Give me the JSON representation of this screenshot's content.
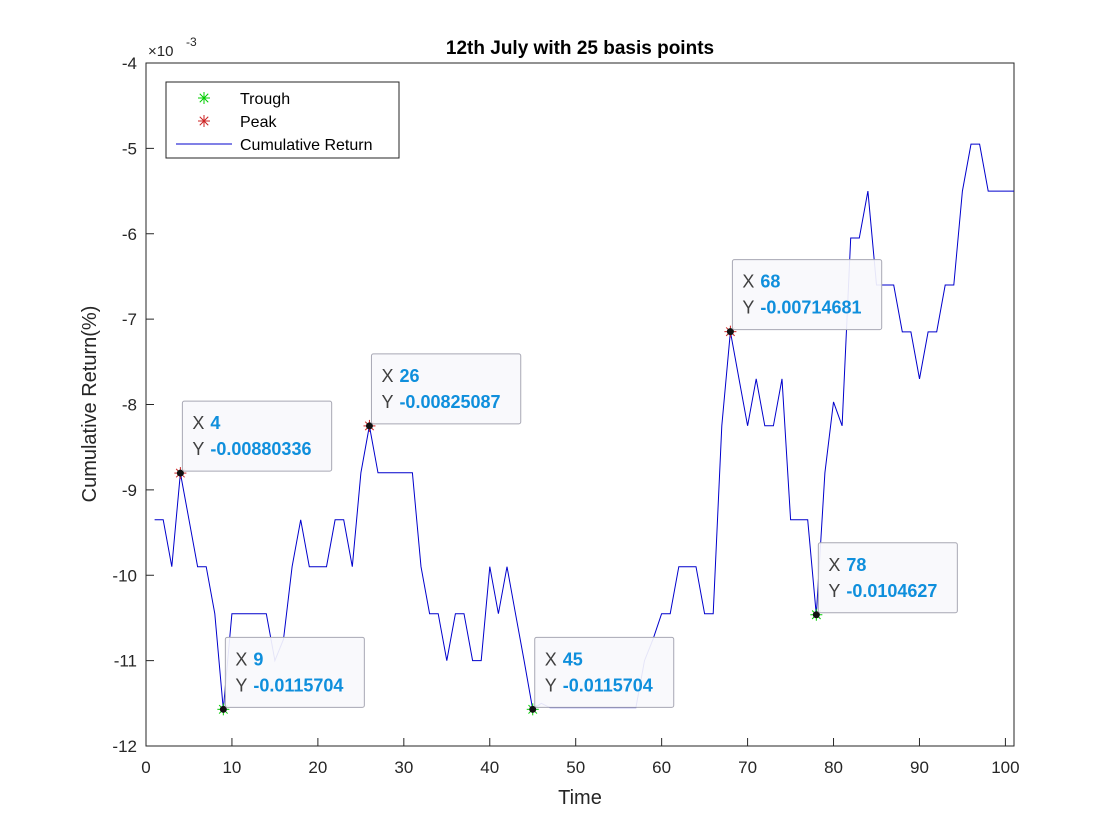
{
  "chart_data": {
    "type": "line",
    "title": "12th July with 25 basis points",
    "xlabel": "Time",
    "ylabel": "Cumulative Return(%)",
    "xlim": [
      0,
      101
    ],
    "ylim": [
      -12,
      -4
    ],
    "exponent_label": "×10",
    "exponent_power": "-3",
    "x_ticks": [
      0,
      10,
      20,
      30,
      40,
      50,
      60,
      70,
      80,
      90,
      100
    ],
    "x_tick_labels": [
      "0",
      "10",
      "20",
      "30",
      "40",
      "50",
      "60",
      "70",
      "80",
      "90",
      "100"
    ],
    "y_ticks": [
      -12,
      -11,
      -10,
      -9,
      -8,
      -7,
      -6,
      -5,
      -4
    ],
    "y_tick_labels": [
      "-12",
      "-11",
      "-10",
      "-9",
      "-8",
      "-7",
      "-6",
      "-5",
      "-4"
    ],
    "legend": {
      "position": "top-left",
      "entries": [
        {
          "label": "Trough",
          "marker": "asterisk",
          "color": "#00cc00"
        },
        {
          "label": "Peak",
          "marker": "asterisk",
          "color": "#cc2222"
        },
        {
          "label": "Cumulative Return",
          "marker": "line",
          "color": "#0000cc"
        }
      ]
    },
    "series": [
      {
        "name": "Cumulative Return",
        "color": "#0000cc",
        "x": [
          1,
          2,
          3,
          4,
          5,
          6,
          7,
          8,
          9,
          10,
          11,
          12,
          13,
          14,
          15,
          16,
          17,
          18,
          19,
          20,
          21,
          22,
          23,
          24,
          25,
          26,
          27,
          28,
          29,
          30,
          31,
          32,
          33,
          34,
          35,
          36,
          37,
          38,
          39,
          40,
          41,
          42,
          43,
          44,
          45,
          46,
          47,
          48,
          49,
          50,
          51,
          52,
          53,
          54,
          55,
          56,
          57,
          58,
          59,
          60,
          61,
          62,
          63,
          64,
          65,
          66,
          67,
          68,
          69,
          70,
          71,
          72,
          73,
          74,
          75,
          76,
          77,
          78,
          79,
          80,
          81,
          82,
          83,
          84,
          85,
          86,
          87,
          88,
          89,
          90,
          91,
          92,
          93,
          94,
          95,
          96,
          97,
          98,
          99,
          100,
          101
        ],
        "y": [
          -9.35,
          -9.35,
          -9.9,
          -8.8034,
          -9.35,
          -9.9,
          -9.9,
          -10.45,
          -11.5704,
          -10.45,
          -10.45,
          -10.45,
          -10.45,
          -10.45,
          -11.0,
          -10.75,
          -9.9,
          -9.35,
          -9.9,
          -9.9,
          -9.9,
          -9.35,
          -9.35,
          -9.9,
          -8.8,
          -8.2509,
          -8.8,
          -8.8,
          -8.8,
          -8.8,
          -8.8,
          -9.9,
          -10.45,
          -10.45,
          -11.0,
          -10.45,
          -10.45,
          -11.0,
          -11.0,
          -9.9,
          -10.45,
          -9.9,
          -10.45,
          -11.0,
          -11.5704,
          -11.5,
          -11.55,
          -11.55,
          -11.55,
          -11.55,
          -11.55,
          -11.55,
          -11.55,
          -11.55,
          -11.55,
          -11.55,
          -11.55,
          -11.0,
          -10.75,
          -10.45,
          -10.45,
          -9.9,
          -9.9,
          -9.9,
          -10.45,
          -10.45,
          -8.25,
          -7.1468,
          -7.7,
          -8.25,
          -7.7,
          -8.25,
          -8.25,
          -7.7,
          -9.35,
          -9.35,
          -9.35,
          -10.4627,
          -8.8,
          -7.97,
          -8.25,
          -6.05,
          -6.05,
          -5.5,
          -6.6,
          -6.6,
          -6.6,
          -7.15,
          -7.15,
          -7.7,
          -7.15,
          -7.15,
          -6.6,
          -6.6,
          -5.5,
          -4.95,
          -4.95,
          -5.5,
          -5.5,
          -5.5,
          -5.5
        ]
      }
    ],
    "troughs": [
      {
        "x": 9,
        "y": -11.5704
      },
      {
        "x": 45,
        "y": -11.5704
      },
      {
        "x": 78,
        "y": -10.4627
      }
    ],
    "peaks": [
      {
        "x": 4,
        "y": -8.80336
      },
      {
        "x": 26,
        "y": -8.25087
      },
      {
        "x": 68,
        "y": -7.14681
      }
    ],
    "datatips": [
      {
        "x_key": "X",
        "x_value": "4",
        "y_key": "Y",
        "y_value": "-0.00880336"
      },
      {
        "x_key": "X",
        "x_value": "9",
        "y_key": "Y",
        "y_value": "-0.0115704"
      },
      {
        "x_key": "X",
        "x_value": "26",
        "y_key": "Y",
        "y_value": "-0.00825087"
      },
      {
        "x_key": "X",
        "x_value": "45",
        "y_key": "Y",
        "y_value": "-0.0115704"
      },
      {
        "x_key": "X",
        "x_value": "68",
        "y_key": "Y",
        "y_value": "-0.00714681"
      },
      {
        "x_key": "X",
        "x_value": "78",
        "y_key": "Y",
        "y_value": "-0.0104627"
      }
    ],
    "datatip_value_color": "#0f8fdc",
    "grid": false
  }
}
